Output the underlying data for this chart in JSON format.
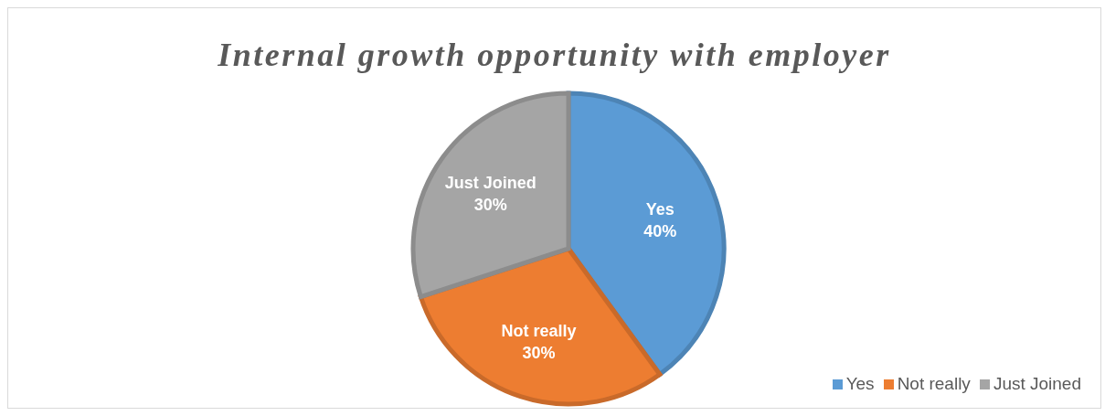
{
  "chart_data": {
    "type": "pie",
    "title": "Internal growth opportunity with employer",
    "categories": [
      "Yes",
      "Not really",
      "Just Joined"
    ],
    "values": [
      40,
      30,
      30
    ],
    "value_labels": [
      "40%",
      "30%",
      "30%"
    ],
    "colors": [
      "#5b9bd5",
      "#ed7d31",
      "#a5a5a5"
    ],
    "legend": "bottom right"
  }
}
